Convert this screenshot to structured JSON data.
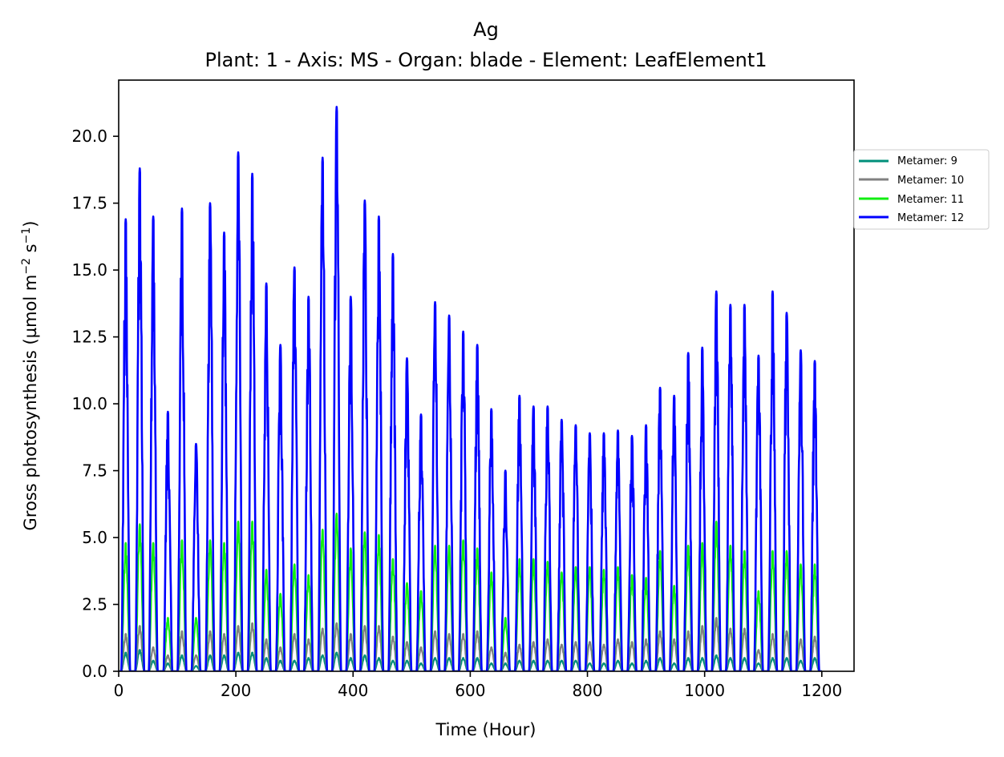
{
  "chart_data": {
    "type": "line",
    "title": "Ag",
    "subtitle": "Plant: 1 - Axis: MS - Organ: blade - Element: LeafElement1",
    "xlabel": "Time (Hour)",
    "ylabel": "Gross photosynthesis (µmol m",
    "ylabel_unit_sup1": "−2",
    "ylabel_unit_mid": " s",
    "ylabel_unit_sup2": "−1",
    "ylabel_close": ")",
    "xlim": [
      0,
      1255
    ],
    "ylim": [
      0,
      22.1
    ],
    "xticks": [
      0,
      200,
      400,
      600,
      800,
      1000,
      1200
    ],
    "xtick_labels": [
      "0",
      "200",
      "400",
      "600",
      "800",
      "1000",
      "1200"
    ],
    "yticks": [
      0,
      2.5,
      5,
      7.5,
      10,
      12.5,
      15,
      17.5,
      20
    ],
    "ytick_labels": [
      "0.0",
      "2.5",
      "5.0",
      "7.5",
      "10.0",
      "12.5",
      "15.0",
      "17.5",
      "20.0"
    ],
    "grid": false,
    "legend_position": "right",
    "day_length": 24,
    "x_start": 0,
    "x_end": 1200,
    "series": [
      {
        "name": "Metamer: 9",
        "color": "#008f7a",
        "peaks": [
          {
            "x": 12,
            "y": 0.7
          },
          {
            "x": 36,
            "y": 0.8
          },
          {
            "x": 59,
            "y": 0.4
          },
          {
            "x": 84,
            "y": 0.3
          },
          {
            "x": 108,
            "y": 0.6
          },
          {
            "x": 132,
            "y": 0.2
          },
          {
            "x": 156,
            "y": 0.6
          },
          {
            "x": 180,
            "y": 0.6
          },
          {
            "x": 204,
            "y": 0.7
          },
          {
            "x": 228,
            "y": 0.7
          },
          {
            "x": 252,
            "y": 0.5
          },
          {
            "x": 276,
            "y": 0.4
          },
          {
            "x": 300,
            "y": 0.4
          },
          {
            "x": 324,
            "y": 0.5
          },
          {
            "x": 348,
            "y": 0.6
          },
          {
            "x": 372,
            "y": 0.7
          },
          {
            "x": 396,
            "y": 0.5
          },
          {
            "x": 420,
            "y": 0.6
          },
          {
            "x": 444,
            "y": 0.5
          },
          {
            "x": 468,
            "y": 0.4
          },
          {
            "x": 492,
            "y": 0.4
          },
          {
            "x": 516,
            "y": 0.3
          },
          {
            "x": 540,
            "y": 0.5
          },
          {
            "x": 564,
            "y": 0.5
          },
          {
            "x": 588,
            "y": 0.5
          },
          {
            "x": 612,
            "y": 0.5
          },
          {
            "x": 636,
            "y": 0.3
          },
          {
            "x": 660,
            "y": 0.3
          },
          {
            "x": 684,
            "y": 0.4
          },
          {
            "x": 708,
            "y": 0.4
          },
          {
            "x": 732,
            "y": 0.4
          },
          {
            "x": 756,
            "y": 0.4
          },
          {
            "x": 780,
            "y": 0.4
          },
          {
            "x": 804,
            "y": 0.3
          },
          {
            "x": 828,
            "y": 0.3
          },
          {
            "x": 852,
            "y": 0.4
          },
          {
            "x": 876,
            "y": 0.3
          },
          {
            "x": 900,
            "y": 0.4
          },
          {
            "x": 924,
            "y": 0.5
          },
          {
            "x": 948,
            "y": 0.3
          },
          {
            "x": 972,
            "y": 0.5
          },
          {
            "x": 996,
            "y": 0.5
          },
          {
            "x": 1020,
            "y": 0.6
          },
          {
            "x": 1044,
            "y": 0.5
          },
          {
            "x": 1068,
            "y": 0.5
          },
          {
            "x": 1092,
            "y": 0.3
          },
          {
            "x": 1116,
            "y": 0.5
          },
          {
            "x": 1140,
            "y": 0.5
          },
          {
            "x": 1164,
            "y": 0.4
          },
          {
            "x": 1188,
            "y": 0.5
          }
        ]
      },
      {
        "name": "Metamer: 10",
        "color": "#808080",
        "peaks": [
          {
            "x": 12,
            "y": 1.4
          },
          {
            "x": 36,
            "y": 1.7
          },
          {
            "x": 59,
            "y": 0.9
          },
          {
            "x": 84,
            "y": 0.6
          },
          {
            "x": 108,
            "y": 1.5
          },
          {
            "x": 132,
            "y": 0.6
          },
          {
            "x": 156,
            "y": 1.5
          },
          {
            "x": 180,
            "y": 1.4
          },
          {
            "x": 204,
            "y": 1.7
          },
          {
            "x": 228,
            "y": 1.8
          },
          {
            "x": 252,
            "y": 1.2
          },
          {
            "x": 276,
            "y": 0.9
          },
          {
            "x": 300,
            "y": 1.4
          },
          {
            "x": 324,
            "y": 1.2
          },
          {
            "x": 348,
            "y": 1.6
          },
          {
            "x": 372,
            "y": 1.8
          },
          {
            "x": 396,
            "y": 1.4
          },
          {
            "x": 420,
            "y": 1.7
          },
          {
            "x": 444,
            "y": 1.7
          },
          {
            "x": 468,
            "y": 1.3
          },
          {
            "x": 492,
            "y": 1.1
          },
          {
            "x": 516,
            "y": 0.9
          },
          {
            "x": 540,
            "y": 1.5
          },
          {
            "x": 564,
            "y": 1.4
          },
          {
            "x": 588,
            "y": 1.4
          },
          {
            "x": 612,
            "y": 1.5
          },
          {
            "x": 636,
            "y": 0.9
          },
          {
            "x": 660,
            "y": 0.7
          },
          {
            "x": 684,
            "y": 1.0
          },
          {
            "x": 708,
            "y": 1.1
          },
          {
            "x": 732,
            "y": 1.2
          },
          {
            "x": 756,
            "y": 1.0
          },
          {
            "x": 780,
            "y": 1.1
          },
          {
            "x": 804,
            "y": 1.1
          },
          {
            "x": 828,
            "y": 1.0
          },
          {
            "x": 852,
            "y": 1.2
          },
          {
            "x": 876,
            "y": 1.1
          },
          {
            "x": 900,
            "y": 1.2
          },
          {
            "x": 924,
            "y": 1.5
          },
          {
            "x": 948,
            "y": 1.2
          },
          {
            "x": 972,
            "y": 1.5
          },
          {
            "x": 996,
            "y": 1.7
          },
          {
            "x": 1020,
            "y": 2.0
          },
          {
            "x": 1044,
            "y": 1.6
          },
          {
            "x": 1068,
            "y": 1.6
          },
          {
            "x": 1092,
            "y": 0.8
          },
          {
            "x": 1116,
            "y": 1.4
          },
          {
            "x": 1140,
            "y": 1.5
          },
          {
            "x": 1164,
            "y": 1.2
          },
          {
            "x": 1188,
            "y": 1.3
          }
        ]
      },
      {
        "name": "Metamer: 11",
        "color": "#11ee11",
        "peaks": [
          {
            "x": 12,
            "y": 4.8
          },
          {
            "x": 36,
            "y": 5.5
          },
          {
            "x": 59,
            "y": 4.8
          },
          {
            "x": 84,
            "y": 2.0
          },
          {
            "x": 108,
            "y": 4.9
          },
          {
            "x": 132,
            "y": 2.0
          },
          {
            "x": 156,
            "y": 4.9
          },
          {
            "x": 180,
            "y": 4.8
          },
          {
            "x": 204,
            "y": 5.6
          },
          {
            "x": 228,
            "y": 5.6
          },
          {
            "x": 252,
            "y": 3.8
          },
          {
            "x": 276,
            "y": 2.9
          },
          {
            "x": 300,
            "y": 4.0
          },
          {
            "x": 324,
            "y": 3.6
          },
          {
            "x": 348,
            "y": 5.3
          },
          {
            "x": 372,
            "y": 5.9
          },
          {
            "x": 396,
            "y": 4.6
          },
          {
            "x": 420,
            "y": 5.2
          },
          {
            "x": 444,
            "y": 5.1
          },
          {
            "x": 468,
            "y": 4.2
          },
          {
            "x": 492,
            "y": 3.3
          },
          {
            "x": 516,
            "y": 3.0
          },
          {
            "x": 540,
            "y": 4.7
          },
          {
            "x": 564,
            "y": 4.7
          },
          {
            "x": 588,
            "y": 4.9
          },
          {
            "x": 612,
            "y": 4.6
          },
          {
            "x": 636,
            "y": 3.7
          },
          {
            "x": 660,
            "y": 2.0
          },
          {
            "x": 684,
            "y": 4.2
          },
          {
            "x": 708,
            "y": 4.2
          },
          {
            "x": 732,
            "y": 4.1
          },
          {
            "x": 756,
            "y": 3.7
          },
          {
            "x": 780,
            "y": 3.9
          },
          {
            "x": 804,
            "y": 3.9
          },
          {
            "x": 828,
            "y": 3.8
          },
          {
            "x": 852,
            "y": 3.9
          },
          {
            "x": 876,
            "y": 3.6
          },
          {
            "x": 900,
            "y": 3.5
          },
          {
            "x": 924,
            "y": 4.5
          },
          {
            "x": 948,
            "y": 3.2
          },
          {
            "x": 972,
            "y": 4.7
          },
          {
            "x": 996,
            "y": 4.8
          },
          {
            "x": 1020,
            "y": 5.6
          },
          {
            "x": 1044,
            "y": 4.7
          },
          {
            "x": 1068,
            "y": 4.5
          },
          {
            "x": 1092,
            "y": 3.0
          },
          {
            "x": 1116,
            "y": 4.5
          },
          {
            "x": 1140,
            "y": 4.5
          },
          {
            "x": 1164,
            "y": 4.0
          },
          {
            "x": 1188,
            "y": 4.0
          }
        ]
      },
      {
        "name": "Metamer: 12",
        "color": "#0000ff",
        "peaks": [
          {
            "x": 12,
            "y": 16.9
          },
          {
            "x": 36,
            "y": 18.8
          },
          {
            "x": 59,
            "y": 17.0
          },
          {
            "x": 84,
            "y": 9.7
          },
          {
            "x": 108,
            "y": 17.3
          },
          {
            "x": 132,
            "y": 8.5
          },
          {
            "x": 156,
            "y": 17.5
          },
          {
            "x": 180,
            "y": 16.4
          },
          {
            "x": 204,
            "y": 19.4
          },
          {
            "x": 228,
            "y": 18.6
          },
          {
            "x": 252,
            "y": 14.5
          },
          {
            "x": 276,
            "y": 12.2
          },
          {
            "x": 300,
            "y": 15.1
          },
          {
            "x": 324,
            "y": 14.0
          },
          {
            "x": 348,
            "y": 19.2
          },
          {
            "x": 372,
            "y": 21.1
          },
          {
            "x": 396,
            "y": 14.0
          },
          {
            "x": 420,
            "y": 17.6
          },
          {
            "x": 444,
            "y": 17.0
          },
          {
            "x": 468,
            "y": 15.6
          },
          {
            "x": 492,
            "y": 11.7
          },
          {
            "x": 516,
            "y": 9.6
          },
          {
            "x": 540,
            "y": 13.8
          },
          {
            "x": 564,
            "y": 13.3
          },
          {
            "x": 588,
            "y": 12.7
          },
          {
            "x": 612,
            "y": 12.2
          },
          {
            "x": 636,
            "y": 9.8
          },
          {
            "x": 660,
            "y": 7.5
          },
          {
            "x": 684,
            "y": 10.3
          },
          {
            "x": 708,
            "y": 9.9
          },
          {
            "x": 732,
            "y": 9.9
          },
          {
            "x": 756,
            "y": 9.4
          },
          {
            "x": 780,
            "y": 9.2
          },
          {
            "x": 804,
            "y": 8.9
          },
          {
            "x": 828,
            "y": 8.9
          },
          {
            "x": 852,
            "y": 9.0
          },
          {
            "x": 876,
            "y": 8.8
          },
          {
            "x": 900,
            "y": 9.2
          },
          {
            "x": 924,
            "y": 10.6
          },
          {
            "x": 948,
            "y": 10.3
          },
          {
            "x": 972,
            "y": 11.9
          },
          {
            "x": 996,
            "y": 12.1
          },
          {
            "x": 1020,
            "y": 14.2
          },
          {
            "x": 1044,
            "y": 13.7
          },
          {
            "x": 1068,
            "y": 13.7
          },
          {
            "x": 1092,
            "y": 11.8
          },
          {
            "x": 1116,
            "y": 14.2
          },
          {
            "x": 1140,
            "y": 13.4
          },
          {
            "x": 1164,
            "y": 12.0
          },
          {
            "x": 1188,
            "y": 11.6
          }
        ]
      }
    ]
  }
}
